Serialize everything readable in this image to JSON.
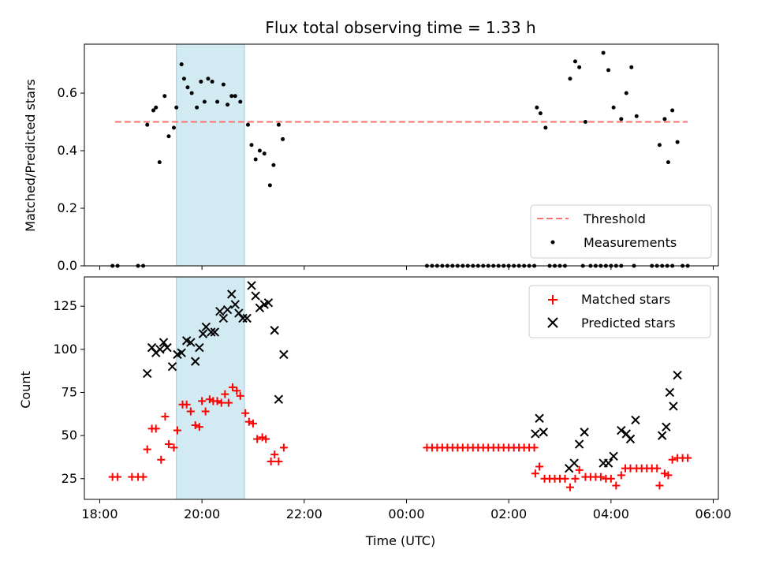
{
  "chart_data": [
    {
      "type": "scatter",
      "title": "Flux total observing time = 1.33 h",
      "xlabel": "",
      "ylabel": "Matched/Predicted stars",
      "ylim": [
        0,
        0.77
      ],
      "yticks": [
        "0.0",
        "0.2",
        "0.4",
        "0.6"
      ],
      "x_unit": "hours since 18:00 UTC",
      "xlim": [
        -0.3,
        12.1
      ],
      "highlight_span": [
        1.5,
        2.83
      ],
      "threshold": {
        "name": "Threshold",
        "value": 0.5,
        "x": [
          0.3,
          11.5
        ],
        "color": "#ff7070"
      },
      "legend": {
        "position": "lower right",
        "entries": [
          "Threshold",
          "Measurements"
        ]
      },
      "series": [
        {
          "name": "Measurements",
          "color": "#000000",
          "points": [
            [
              0.25,
              0
            ],
            [
              0.35,
              0
            ],
            [
              0.75,
              0
            ],
            [
              0.85,
              0
            ],
            [
              0.93,
              0.49
            ],
            [
              1.05,
              0.54
            ],
            [
              1.1,
              0.55
            ],
            [
              1.17,
              0.36
            ],
            [
              1.27,
              0.59
            ],
            [
              1.35,
              0.45
            ],
            [
              1.45,
              0.48
            ],
            [
              1.5,
              0.55
            ],
            [
              1.6,
              0.7
            ],
            [
              1.65,
              0.65
            ],
            [
              1.72,
              0.62
            ],
            [
              1.8,
              0.6
            ],
            [
              1.9,
              0.55
            ],
            [
              1.98,
              0.64
            ],
            [
              2.05,
              0.57
            ],
            [
              2.12,
              0.65
            ],
            [
              2.2,
              0.64
            ],
            [
              2.3,
              0.57
            ],
            [
              2.42,
              0.63
            ],
            [
              2.5,
              0.56
            ],
            [
              2.58,
              0.59
            ],
            [
              2.65,
              0.59
            ],
            [
              2.75,
              0.57
            ],
            [
              2.9,
              0.49
            ],
            [
              2.97,
              0.42
            ],
            [
              3.05,
              0.37
            ],
            [
              3.13,
              0.4
            ],
            [
              3.22,
              0.39
            ],
            [
              3.33,
              0.28
            ],
            [
              3.4,
              0.35
            ],
            [
              3.5,
              0.49
            ],
            [
              3.58,
              0.44
            ],
            [
              6.4,
              0
            ],
            [
              6.5,
              0
            ],
            [
              6.6,
              0
            ],
            [
              6.7,
              0
            ],
            [
              6.8,
              0
            ],
            [
              6.9,
              0
            ],
            [
              7.0,
              0
            ],
            [
              7.1,
              0
            ],
            [
              7.2,
              0
            ],
            [
              7.3,
              0
            ],
            [
              7.4,
              0
            ],
            [
              7.5,
              0
            ],
            [
              7.6,
              0
            ],
            [
              7.7,
              0
            ],
            [
              7.8,
              0
            ],
            [
              7.9,
              0
            ],
            [
              8.0,
              0
            ],
            [
              8.1,
              0
            ],
            [
              8.2,
              0
            ],
            [
              8.3,
              0
            ],
            [
              8.4,
              0
            ],
            [
              8.5,
              0
            ],
            [
              8.55,
              0.55
            ],
            [
              8.62,
              0.53
            ],
            [
              8.72,
              0.48
            ],
            [
              9.2,
              0.65
            ],
            [
              9.3,
              0.71
            ],
            [
              9.38,
              0.69
            ],
            [
              9.5,
              0.5
            ],
            [
              9.85,
              0.74
            ],
            [
              9.95,
              0.68
            ],
            [
              10.05,
              0.55
            ],
            [
              10.2,
              0.51
            ],
            [
              10.3,
              0.6
            ],
            [
              10.4,
              0.69
            ],
            [
              10.5,
              0.52
            ],
            [
              10.8,
              0
            ],
            [
              10.95,
              0.42
            ],
            [
              11.05,
              0.51
            ],
            [
              11.12,
              0.36
            ],
            [
              11.2,
              0.54
            ],
            [
              11.3,
              0.43
            ],
            [
              8.8,
              0
            ],
            [
              8.9,
              0
            ],
            [
              9.0,
              0
            ],
            [
              9.1,
              0
            ],
            [
              9.45,
              0
            ],
            [
              9.6,
              0
            ],
            [
              9.7,
              0
            ],
            [
              9.8,
              0
            ],
            [
              9.9,
              0
            ],
            [
              10.0,
              0
            ],
            [
              10.1,
              0
            ],
            [
              10.2,
              0
            ],
            [
              10.45,
              0
            ],
            [
              10.9,
              0
            ],
            [
              11.0,
              0
            ],
            [
              11.1,
              0
            ],
            [
              11.2,
              0
            ],
            [
              11.4,
              0
            ],
            [
              11.5,
              0
            ]
          ]
        }
      ]
    },
    {
      "type": "scatter",
      "title": "",
      "xlabel": "Time (UTC)",
      "ylabel": "Count",
      "ylim": [
        13,
        142
      ],
      "yticks": [
        "25",
        "50",
        "75",
        "100",
        "125"
      ],
      "x_unit": "hours since 18:00 UTC",
      "xlim": [
        -0.3,
        12.1
      ],
      "xticks": [
        "18:00",
        "20:00",
        "22:00",
        "00:00",
        "02:00",
        "04:00",
        "06:00"
      ],
      "highlight_span": [
        1.5,
        2.83
      ],
      "legend": {
        "position": "upper right",
        "entries": [
          "Matched stars",
          "Predicted stars"
        ]
      },
      "series": [
        {
          "name": "Matched stars",
          "marker": "+",
          "color": "#ff0000",
          "points": [
            [
              0.25,
              26
            ],
            [
              0.35,
              26
            ],
            [
              0.63,
              26
            ],
            [
              0.75,
              26
            ],
            [
              0.85,
              26
            ],
            [
              0.93,
              42
            ],
            [
              1.02,
              54
            ],
            [
              1.1,
              54
            ],
            [
              1.2,
              36
            ],
            [
              1.28,
              61
            ],
            [
              1.35,
              45
            ],
            [
              1.45,
              43
            ],
            [
              1.52,
              53
            ],
            [
              1.62,
              68
            ],
            [
              1.7,
              68
            ],
            [
              1.78,
              64
            ],
            [
              1.87,
              56
            ],
            [
              1.95,
              55
            ],
            [
              2.0,
              70
            ],
            [
              2.07,
              64
            ],
            [
              2.15,
              71
            ],
            [
              2.22,
              70
            ],
            [
              2.3,
              70
            ],
            [
              2.38,
              69
            ],
            [
              2.45,
              74
            ],
            [
              2.52,
              69
            ],
            [
              2.6,
              78
            ],
            [
              2.68,
              76
            ],
            [
              2.75,
              73
            ],
            [
              2.85,
              63
            ],
            [
              2.92,
              58
            ],
            [
              3.0,
              57
            ],
            [
              3.08,
              48
            ],
            [
              3.18,
              49
            ],
            [
              3.25,
              48
            ],
            [
              3.35,
              35
            ],
            [
              3.42,
              39
            ],
            [
              3.5,
              35
            ],
            [
              3.6,
              43
            ],
            [
              6.4,
              43
            ],
            [
              6.5,
              43
            ],
            [
              6.6,
              43
            ],
            [
              6.7,
              43
            ],
            [
              6.8,
              43
            ],
            [
              6.9,
              43
            ],
            [
              7.0,
              43
            ],
            [
              7.1,
              43
            ],
            [
              7.2,
              43
            ],
            [
              7.3,
              43
            ],
            [
              7.4,
              43
            ],
            [
              7.5,
              43
            ],
            [
              7.6,
              43
            ],
            [
              7.7,
              43
            ],
            [
              7.8,
              43
            ],
            [
              7.9,
              43
            ],
            [
              8.0,
              43
            ],
            [
              8.1,
              43
            ],
            [
              8.2,
              43
            ],
            [
              8.3,
              43
            ],
            [
              8.4,
              43
            ],
            [
              8.5,
              43
            ],
            [
              8.52,
              28
            ],
            [
              8.6,
              32
            ],
            [
              8.7,
              25
            ],
            [
              8.8,
              25
            ],
            [
              8.9,
              25
            ],
            [
              9.0,
              25
            ],
            [
              9.1,
              25
            ],
            [
              9.2,
              20
            ],
            [
              9.3,
              25
            ],
            [
              9.38,
              30
            ],
            [
              9.5,
              26
            ],
            [
              9.6,
              26
            ],
            [
              9.7,
              26
            ],
            [
              9.8,
              26
            ],
            [
              9.9,
              25
            ],
            [
              10.0,
              25
            ],
            [
              10.1,
              21
            ],
            [
              10.2,
              27
            ],
            [
              10.28,
              31
            ],
            [
              10.38,
              31
            ],
            [
              10.5,
              31
            ],
            [
              10.6,
              31
            ],
            [
              10.7,
              31
            ],
            [
              10.8,
              31
            ],
            [
              10.9,
              31
            ],
            [
              10.95,
              21
            ],
            [
              11.05,
              28
            ],
            [
              11.12,
              27
            ],
            [
              11.2,
              36
            ],
            [
              11.3,
              37
            ],
            [
              11.4,
              37
            ],
            [
              11.5,
              37
            ]
          ]
        },
        {
          "name": "Predicted stars",
          "marker": "x",
          "color": "#000000",
          "points": [
            [
              0.93,
              86
            ],
            [
              1.02,
              101
            ],
            [
              1.1,
              98
            ],
            [
              1.18,
              100
            ],
            [
              1.25,
              104
            ],
            [
              1.32,
              101
            ],
            [
              1.42,
              90
            ],
            [
              1.52,
              97
            ],
            [
              1.6,
              98
            ],
            [
              1.7,
              105
            ],
            [
              1.78,
              104
            ],
            [
              1.87,
              93
            ],
            [
              1.95,
              101
            ],
            [
              2.02,
              109
            ],
            [
              2.08,
              113
            ],
            [
              2.18,
              110
            ],
            [
              2.25,
              110
            ],
            [
              2.35,
              122
            ],
            [
              2.42,
              118
            ],
            [
              2.5,
              123
            ],
            [
              2.58,
              132
            ],
            [
              2.65,
              126
            ],
            [
              2.72,
              121
            ],
            [
              2.8,
              118
            ],
            [
              2.88,
              118
            ],
            [
              2.97,
              137
            ],
            [
              3.05,
              131
            ],
            [
              3.13,
              124
            ],
            [
              3.22,
              126
            ],
            [
              3.3,
              127
            ],
            [
              3.42,
              111
            ],
            [
              3.5,
              71
            ],
            [
              3.6,
              97
            ],
            [
              8.52,
              51
            ],
            [
              8.6,
              60
            ],
            [
              8.68,
              52
            ],
            [
              9.18,
              31
            ],
            [
              9.28,
              34
            ],
            [
              9.38,
              45
            ],
            [
              9.48,
              52
            ],
            [
              9.85,
              34
            ],
            [
              9.95,
              34
            ],
            [
              10.05,
              38
            ],
            [
              10.2,
              53
            ],
            [
              10.3,
              51
            ],
            [
              10.38,
              48
            ],
            [
              10.48,
              59
            ],
            [
              11.0,
              50
            ],
            [
              11.08,
              55
            ],
            [
              11.15,
              75
            ],
            [
              11.22,
              67
            ],
            [
              11.3,
              85
            ]
          ]
        }
      ]
    }
  ]
}
